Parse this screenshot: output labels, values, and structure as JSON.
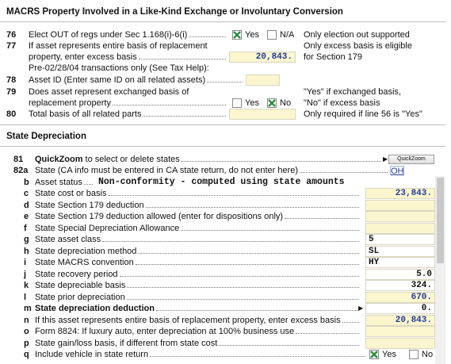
{
  "header": {
    "title": "MACRS Property Involved in a Like-Kind Exchange or Involuntary Conversion"
  },
  "like_kind": {
    "line_76": {
      "number": "76",
      "label": "Elect OUT of regs under Sec 1.168(i)-6(i)",
      "options": [
        {
          "label": "Yes",
          "checked": true
        },
        {
          "label": "N/A",
          "checked": false
        }
      ],
      "note": [
        "Only election out supported"
      ]
    },
    "line_77": {
      "number": "77",
      "label": [
        "If asset represents entire basis of replacement",
        "property, enter excess basis"
      ],
      "value": "20,843.",
      "note": [
        "Only excess basis is eligible",
        "for Section 179"
      ]
    },
    "pre_note": "Pre-02/28/04 transactions only (See Tax Help):",
    "line_78": {
      "number": "78",
      "label": "Asset ID (Enter same ID on all related assets)"
    },
    "line_79": {
      "number": "79",
      "label": [
        "Does asset represent exchanged basis of",
        "replacement property"
      ],
      "options": [
        {
          "label": "Yes",
          "checked": false
        },
        {
          "label": "No",
          "checked": true
        }
      ],
      "note": [
        "\"Yes\" if exchanged basis,",
        "\"No\" if excess basis"
      ]
    },
    "line_80": {
      "number": "80",
      "label": "Total basis of all related parts",
      "note": [
        "Only required if line 56 is \"Yes\""
      ]
    }
  },
  "state": {
    "title": "State Depreciation",
    "rows": [
      {
        "number": "81",
        "label_bold": "QuickZoom",
        "label": "to select or delete states",
        "button": "QuickZoom"
      },
      {
        "number": "82a",
        "label": "State (CA info must be entered in CA state return, do not enter here)",
        "value": "OH",
        "color": "#1f3d99"
      },
      {
        "letter": "b",
        "label": "Asset status",
        "value": "Non-conformity - computed using state amounts"
      },
      {
        "letter": "c",
        "label": "State cost or basis",
        "value": "23,843.",
        "field": "#fcf6cf",
        "color": "#1f3d99"
      },
      {
        "letter": "d",
        "label": "State Section 179 deduction",
        "field": "#fcf6cf"
      },
      {
        "letter": "e",
        "label": "State Section 179 deduction allowed (enter for dispositions only)",
        "field": "#fcf6cf"
      },
      {
        "letter": "f",
        "label": "State Special Depreciation Allowance",
        "field": "#fcf6cf"
      },
      {
        "letter": "g",
        "label": "State asset class",
        "value": "5",
        "field": "#ffffff",
        "align": "left"
      },
      {
        "letter": "h",
        "label": "State depreciation method",
        "value": "SL",
        "field": "#ffffff",
        "align": "left"
      },
      {
        "letter": "i",
        "label": "State MACRS convention",
        "value": "HY",
        "field": "#ffffff",
        "align": "left"
      },
      {
        "letter": "j",
        "label": "State recovery period",
        "value": "5.0",
        "field": "#ffffff"
      },
      {
        "letter": "k",
        "label": "State depreciable basis",
        "value": "324.",
        "field": "#ffffff"
      },
      {
        "letter": "l",
        "label": "State prior depreciation",
        "value": "670.",
        "field": "#fcf6cf",
        "color": "#1f3d99"
      },
      {
        "letter": "m",
        "label": "State depreciation deduction",
        "bold": true,
        "value": "0.",
        "field": "#ffffff"
      },
      {
        "letter": "n",
        "label": "If this asset represents entire basis of replacement property, enter excess basis",
        "value": "20,843.",
        "field": "#fcf6cf",
        "color": "#1f3d99"
      },
      {
        "letter": "o",
        "label": "Form 8824: If luxury auto, enter depreciation at 100% business use",
        "field": "#fcf6cf"
      },
      {
        "letter": "p",
        "label": "State gain/loss basis, if different from state cost",
        "field": "#fcf6cf"
      },
      {
        "letter": "q",
        "label": "Include vehicle in state return",
        "options": [
          {
            "label": "Yes",
            "checked": true
          },
          {
            "label": "No",
            "checked": false
          }
        ]
      }
    ]
  }
}
